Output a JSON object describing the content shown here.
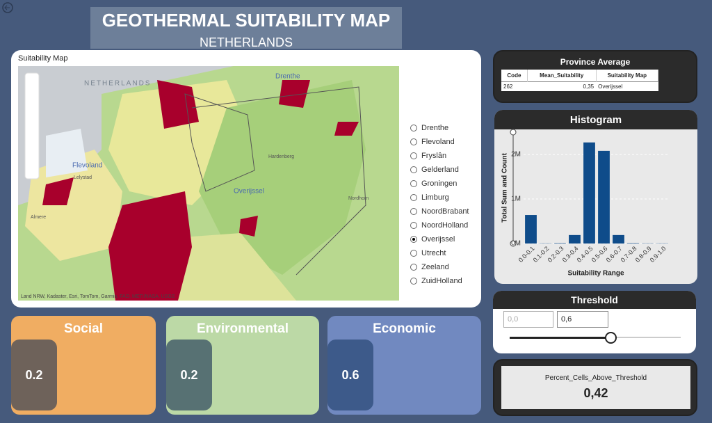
{
  "header": {
    "title": "GEOTHERMAL SUITABILITY MAP",
    "subtitle": "NETHERLANDS"
  },
  "map": {
    "title": "Suitability Map",
    "labels": [
      "NETHERLANDS",
      "Drenthe",
      "Flevoland",
      "Lelystad",
      "Overijssel",
      "Almere",
      "Hardenberg",
      "Nordhorn"
    ],
    "attribution": "Land NRW, Kadaster, Esri, TomTom, Garmin, FAO, METI/NASA, USGS"
  },
  "province_filter": {
    "options": [
      "Drenthe",
      "Flevoland",
      "Fryslân",
      "Gelderland",
      "Groningen",
      "Limburg",
      "NoordBrabant",
      "NoordHolland",
      "Overijssel",
      "Utrecht",
      "Zeeland",
      "ZuidHolland"
    ],
    "selected": "Overijssel"
  },
  "province_average": {
    "title": "Province Average",
    "columns": [
      "Code",
      "Mean_Suitability",
      "Suitability Map"
    ],
    "rows": [
      [
        "262",
        "0,35",
        "Overijssel"
      ]
    ]
  },
  "histogram": {
    "type": "bar",
    "title": "Histogram",
    "x_label": "Suitability Range",
    "y_label": "Total Sum and Count",
    "categories": [
      "0.0-0.1",
      "0.1-0.2",
      "0.2-0.3",
      "0.3-0.4",
      "0.4-0.5",
      "0.5-0.6",
      "0.6-0.7",
      "0.7-0.8",
      "0.8-0.9",
      "0.9-1.0"
    ],
    "values": [
      640000,
      5000,
      10000,
      190000,
      2270000,
      2080000,
      190000,
      10000,
      5000,
      5000
    ],
    "color": "#0f4c8a",
    "ylim": [
      0,
      2500000
    ],
    "yticks": [
      {
        "value": 0,
        "label": "0M"
      },
      {
        "value": 1000000,
        "label": "1M"
      },
      {
        "value": 2000000,
        "label": "2M"
      }
    ],
    "grid": true
  },
  "threshold": {
    "title": "Threshold",
    "min": "0,0",
    "max": "0,6"
  },
  "kpi": {
    "label": "Percent_Cells_Above_Threshold",
    "value": "0,42"
  },
  "cards": [
    {
      "title": "Social",
      "value": "0.2"
    },
    {
      "title": "Environmental",
      "value": "0.2"
    },
    {
      "title": "Economic",
      "value": "0.6"
    }
  ]
}
